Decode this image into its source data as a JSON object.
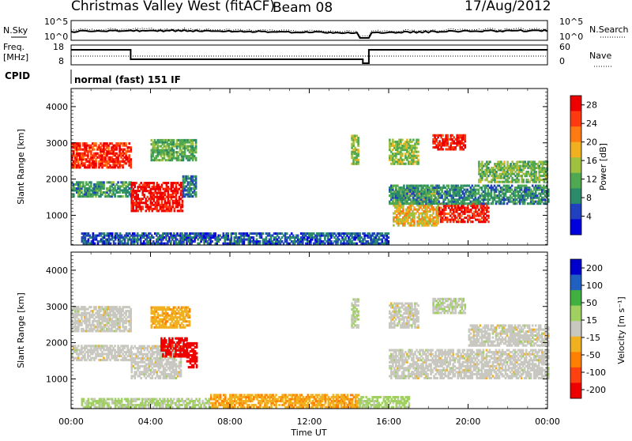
{
  "header": {
    "title": "Christmas Valley West (fitACF)",
    "beam": "Beam 08",
    "date": "17/Aug/2012"
  },
  "noise_panel": {
    "left_label": "N.Sky",
    "right_label": "N.Search",
    "left_ticks": [
      "10^5",
      "10^0"
    ],
    "right_ticks": [
      "10^5",
      "10^0"
    ]
  },
  "freq_panel": {
    "left_label_top": "Freq.",
    "left_label_bottom": "[MHz]",
    "right_label": "Nave",
    "left_ticks": [
      "18",
      "8"
    ],
    "right_ticks": [
      "60",
      "0"
    ]
  },
  "cpid_panel": {
    "label": "CPID",
    "mode": "normal (fast) 151 IF"
  },
  "colors": {
    "power": [
      "#0000dd",
      "#2040c0",
      "#2a8a6a",
      "#50a850",
      "#a0c040",
      "#f0b020",
      "#ff7a10",
      "#ff3a10",
      "#ee0000"
    ],
    "velocity": [
      "#ee0000",
      "#ff4010",
      "#ff8000",
      "#f0b020",
      "#c8c8c0",
      "#a0d060",
      "#40b040",
      "#2060c0",
      "#0000cc"
    ]
  },
  "chart_data": [
    {
      "type": "heatmap",
      "parameter": "Power",
      "ylabel": "Slant Range [km]",
      "xlabel": "",
      "x_ticks": [
        "00:00",
        "04:00",
        "08:00",
        "12:00",
        "16:00",
        "20:00",
        "00:00"
      ],
      "y_ticks": [
        1000,
        2000,
        3000,
        4000
      ],
      "ylim": [
        180,
        4500
      ],
      "colorbar": {
        "label": "Power [dB]",
        "ticks": [
          4,
          8,
          12,
          16,
          20,
          24,
          28
        ],
        "range": [
          0,
          30
        ]
      },
      "regions": [
        {
          "t": [
            0.0,
            3.0
          ],
          "range": [
            2300,
            3000
          ],
          "value": 26
        },
        {
          "t": [
            0.0,
            3.0
          ],
          "range": [
            1500,
            1900
          ],
          "value": 10
        },
        {
          "t": [
            3.0,
            5.6
          ],
          "range": [
            1100,
            1900
          ],
          "value": 28
        },
        {
          "t": [
            5.6,
            6.3
          ],
          "range": [
            1500,
            2100
          ],
          "value": 8
        },
        {
          "t": [
            4.0,
            6.3
          ],
          "range": [
            2500,
            3100
          ],
          "value": 12
        },
        {
          "t": [
            0.5,
            16.0
          ],
          "range": [
            200,
            500
          ],
          "value": 6
        },
        {
          "t": [
            14.1,
            14.5
          ],
          "range": [
            2400,
            3200
          ],
          "value": 14
        },
        {
          "t": [
            16.0,
            17.5
          ],
          "range": [
            2400,
            3100
          ],
          "value": 14
        },
        {
          "t": [
            16.2,
            18.5
          ],
          "range": [
            700,
            1700
          ],
          "value": 18
        },
        {
          "t": [
            18.5,
            21.0
          ],
          "range": [
            800,
            1300
          ],
          "value": 27
        },
        {
          "t": [
            18.2,
            19.8
          ],
          "range": [
            2800,
            3200
          ],
          "value": 27
        },
        {
          "t": [
            16.0,
            24.0
          ],
          "range": [
            1300,
            1800
          ],
          "value": 9
        },
        {
          "t": [
            20.5,
            24.0
          ],
          "range": [
            1900,
            2500
          ],
          "value": 13
        }
      ]
    },
    {
      "type": "heatmap",
      "parameter": "Velocity",
      "ylabel": "Slant Range [km]",
      "xlabel": "Time UT",
      "x_ticks": [
        "00:00",
        "04:00",
        "08:00",
        "12:00",
        "16:00",
        "20:00",
        "00:00"
      ],
      "y_ticks": [
        1000,
        2000,
        3000,
        4000
      ],
      "ylim": [
        180,
        4500
      ],
      "colorbar": {
        "label": "Velocity [m s⁻¹]",
        "ticks": [
          200,
          100,
          50,
          15,
          -15,
          -50,
          -100,
          -200
        ],
        "range": [
          -250,
          250
        ]
      },
      "regions": [
        {
          "t": [
            0.0,
            3.0
          ],
          "range": [
            2300,
            3000
          ],
          "value": 0
        },
        {
          "t": [
            0.0,
            3.0
          ],
          "range": [
            1500,
            1900
          ],
          "value": 0
        },
        {
          "t": [
            3.0,
            5.5
          ],
          "range": [
            1000,
            1900
          ],
          "value": 0
        },
        {
          "t": [
            4.5,
            5.8
          ],
          "range": [
            1600,
            2100
          ],
          "value": -220
        },
        {
          "t": [
            5.8,
            6.3
          ],
          "range": [
            1300,
            2000
          ],
          "value": -230
        },
        {
          "t": [
            4.0,
            6.0
          ],
          "range": [
            2400,
            3000
          ],
          "value": -60
        },
        {
          "t": [
            0.5,
            7.0
          ],
          "range": [
            200,
            450
          ],
          "value": 40
        },
        {
          "t": [
            7.0,
            14.5
          ],
          "range": [
            200,
            550
          ],
          "value": -70
        },
        {
          "t": [
            14.5,
            17.0
          ],
          "range": [
            200,
            500
          ],
          "value": 45
        },
        {
          "t": [
            14.1,
            14.5
          ],
          "range": [
            2400,
            3200
          ],
          "value": 20
        },
        {
          "t": [
            16.0,
            24.0
          ],
          "range": [
            1000,
            1800
          ],
          "value": 0
        },
        {
          "t": [
            20.0,
            24.0
          ],
          "range": [
            1900,
            2500
          ],
          "value": 0
        },
        {
          "t": [
            16.0,
            17.5
          ],
          "range": [
            2400,
            3100
          ],
          "value": 0
        },
        {
          "t": [
            18.2,
            19.8
          ],
          "range": [
            2800,
            3200
          ],
          "value": 20
        }
      ]
    }
  ]
}
